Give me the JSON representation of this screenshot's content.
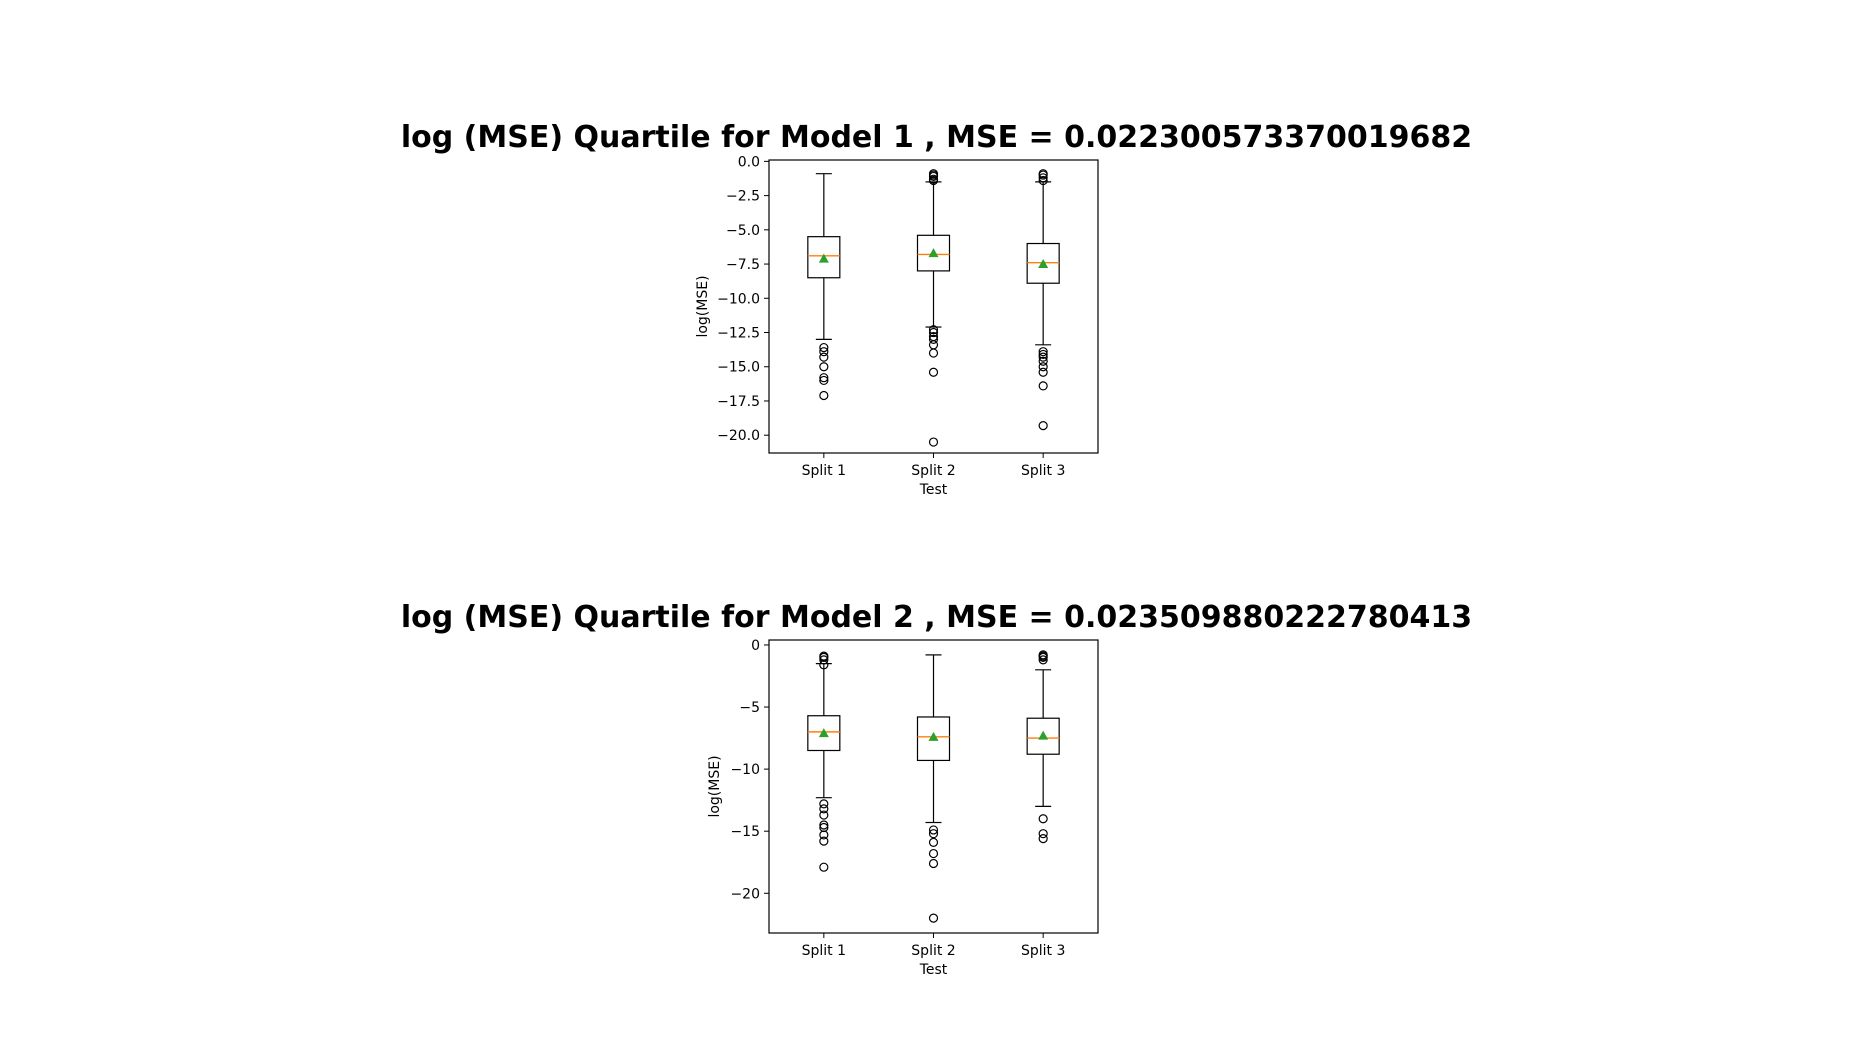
{
  "chart_data": [
    {
      "type": "box",
      "title": "log (MSE) Quartile for Model 1 , MSE = 0.022300573370019682",
      "xlabel": "Test",
      "ylabel": "log(MSE)",
      "categories": [
        "Split 1",
        "Split 2",
        "Split 3"
      ],
      "ylim": [
        -21.3,
        0.1
      ],
      "yticks": [
        0.0,
        -2.5,
        -5.0,
        -7.5,
        -10.0,
        -12.5,
        -15.0,
        -17.5,
        -20.0
      ],
      "ytick_labels": [
        "0.0",
        "−2.5",
        "−5.0",
        "−7.5",
        "−10.0",
        "−12.5",
        "−15.0",
        "−17.5",
        "−20.0"
      ],
      "boxes": [
        {
          "label": "Split 1",
          "whisker_low": -13.0,
          "q1": -8.5,
          "median": -6.9,
          "q3": -5.5,
          "whisker_high": -0.9,
          "mean": -7.1,
          "outliers": [
            -13.6,
            -13.9,
            -14.3,
            -15.0,
            -15.8,
            -16.0,
            -17.1
          ]
        },
        {
          "label": "Split 2",
          "whisker_low": -12.1,
          "q1": -8.0,
          "median": -6.8,
          "q3": -5.4,
          "whisker_high": -1.5,
          "mean": -6.7,
          "outliers": [
            -0.9,
            -1.0,
            -1.1,
            -1.3,
            -1.4,
            -12.3,
            -12.5,
            -12.8,
            -13.0,
            -13.4,
            -14.0,
            -15.4,
            -20.5
          ]
        },
        {
          "label": "Split 3",
          "whisker_low": -13.4,
          "q1": -8.9,
          "median": -7.4,
          "q3": -6.0,
          "whisker_high": -1.5,
          "mean": -7.5,
          "outliers": [
            -0.9,
            -1.0,
            -1.2,
            -1.4,
            -13.9,
            -14.1,
            -14.3,
            -14.6,
            -15.0,
            -15.4,
            -16.4,
            -19.3
          ]
        }
      ],
      "colors": {
        "median": "#ff7f0e",
        "mean": "#2ca02c",
        "box": "#000000"
      }
    },
    {
      "type": "box",
      "title": "log (MSE) Quartile for Model 2 , MSE = 0.023509880222780413",
      "xlabel": "Test",
      "ylabel": "log(MSE)",
      "categories": [
        "Split 1",
        "Split 2",
        "Split 3"
      ],
      "ylim": [
        -23.2,
        0.4
      ],
      "yticks": [
        0,
        -5,
        -10,
        -15,
        -20
      ],
      "ytick_labels": [
        "0",
        "−5",
        "−10",
        "−15",
        "−20"
      ],
      "boxes": [
        {
          "label": "Split 1",
          "whisker_low": -12.3,
          "q1": -8.5,
          "median": -7.0,
          "q3": -5.7,
          "whisker_high": -1.5,
          "mean": -7.1,
          "outliers": [
            -0.9,
            -1.0,
            -1.2,
            -1.6,
            -12.8,
            -13.2,
            -13.7,
            -14.5,
            -14.7,
            -15.3,
            -15.8,
            -17.9
          ]
        },
        {
          "label": "Split 2",
          "whisker_low": -14.3,
          "q1": -9.3,
          "median": -7.4,
          "q3": -5.8,
          "whisker_high": -0.8,
          "mean": -7.4,
          "outliers": [
            -14.9,
            -15.2,
            -15.9,
            -16.8,
            -17.6,
            -22.0
          ]
        },
        {
          "label": "Split 3",
          "whisker_low": -13.0,
          "q1": -8.8,
          "median": -7.5,
          "q3": -5.9,
          "whisker_high": -2.0,
          "mean": -7.3,
          "outliers": [
            -0.8,
            -0.9,
            -1.0,
            -1.2,
            -14.0,
            -15.2,
            -15.6
          ]
        }
      ],
      "colors": {
        "median": "#ff7f0e",
        "mean": "#2ca02c",
        "box": "#000000"
      }
    }
  ]
}
